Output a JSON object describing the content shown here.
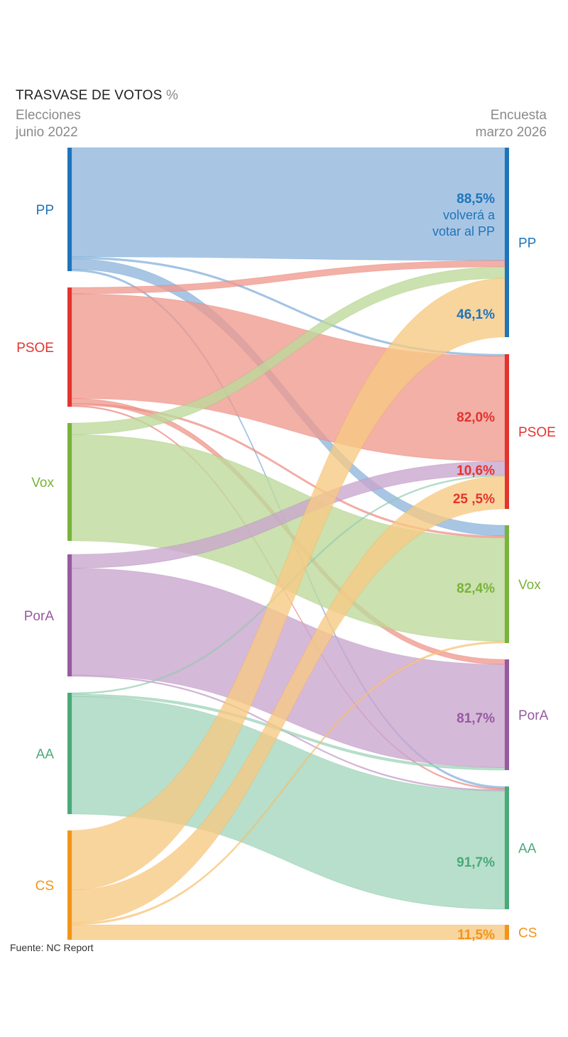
{
  "header": {
    "title": "TRASVASE DE VOTOS",
    "title_unit": "%",
    "left_line1": "Elecciones",
    "left_line2": "junio 2022",
    "right_line1": "Encuesta",
    "right_line2": "marzo 2026"
  },
  "source": "Fuente: NC Report",
  "parties": [
    {
      "id": "PP",
      "label": "PP",
      "color": "#1f74ba",
      "flow": "#8fb6dd"
    },
    {
      "id": "PSOE",
      "label": "PSOE",
      "color": "#e3342f",
      "flow": "#ee9a8e"
    },
    {
      "id": "Vox",
      "label": "Vox",
      "color": "#79b33b",
      "flow": "#bcd99a"
    },
    {
      "id": "PorA",
      "label": "PorA",
      "color": "#955a9f",
      "flow": "#c9a5cd"
    },
    {
      "id": "AA",
      "label": "AA",
      "color": "#4aa97a",
      "flow": "#a4d6bc"
    },
    {
      "id": "CS",
      "label": "CS",
      "color": "#f2941b",
      "flow": "#f7c983"
    }
  ],
  "chart_data": {
    "type": "sankey",
    "left_title": "Elecciones junio 2022",
    "right_title": "Encuesta marzo 2026",
    "left_nodes": [
      "PP",
      "PSOE",
      "Vox",
      "PorA",
      "AA",
      "CS"
    ],
    "right_nodes": [
      "PP",
      "PSOE",
      "Vox",
      "PorA",
      "AA",
      "CS"
    ],
    "flows": [
      {
        "from": "PP",
        "to": "PP",
        "value": 88.5
      },
      {
        "from": "PP",
        "to": "Vox",
        "value": 8.5
      },
      {
        "from": "PP",
        "to": "PSOE",
        "value": 1.5
      },
      {
        "from": "PP",
        "to": "AA",
        "value": 1.5
      },
      {
        "from": "PSOE",
        "to": "PP",
        "value": 5.0
      },
      {
        "from": "PSOE",
        "to": "PSOE",
        "value": 82.0
      },
      {
        "from": "PSOE",
        "to": "PorA",
        "value": 4.0
      },
      {
        "from": "PSOE",
        "to": "Vox",
        "value": 1.5
      },
      {
        "from": "PSOE",
        "to": "AA",
        "value": 1.0
      },
      {
        "from": "Vox",
        "to": "PP",
        "value": 9.0
      },
      {
        "from": "Vox",
        "to": "Vox",
        "value": 82.4
      },
      {
        "from": "PorA",
        "to": "PSOE",
        "value": 10.6
      },
      {
        "from": "PorA",
        "to": "PorA",
        "value": 81.7
      },
      {
        "from": "PorA",
        "to": "AA",
        "value": 1.0
      },
      {
        "from": "AA",
        "to": "PSOE",
        "value": 1.0
      },
      {
        "from": "AA",
        "to": "PorA",
        "value": 2.0
      },
      {
        "from": "AA",
        "to": "AA",
        "value": 91.7
      },
      {
        "from": "CS",
        "to": "PP",
        "value": 46.1
      },
      {
        "from": "CS",
        "to": "PSOE",
        "value": 25.5
      },
      {
        "from": "CS",
        "to": "Vox",
        "value": 1.5
      },
      {
        "from": "CS",
        "to": "CS",
        "value": 11.5
      }
    ],
    "labels": [
      {
        "node": "PP",
        "lines": [
          "88,5%",
          "volverá a",
          "votar al PP"
        ]
      },
      {
        "node": "PP",
        "lines": [
          "46,1%"
        ]
      },
      {
        "node": "PSOE",
        "lines": [
          "82,0%"
        ]
      },
      {
        "node": "PSOE",
        "lines": [
          "10,6%"
        ]
      },
      {
        "node": "PSOE",
        "lines": [
          "25 ,5%"
        ]
      },
      {
        "node": "Vox",
        "lines": [
          "82,4%"
        ]
      },
      {
        "node": "PorA",
        "lines": [
          "81,7%"
        ]
      },
      {
        "node": "AA",
        "lines": [
          "91,7%"
        ]
      },
      {
        "node": "CS",
        "lines": [
          "11,5%"
        ]
      }
    ]
  }
}
